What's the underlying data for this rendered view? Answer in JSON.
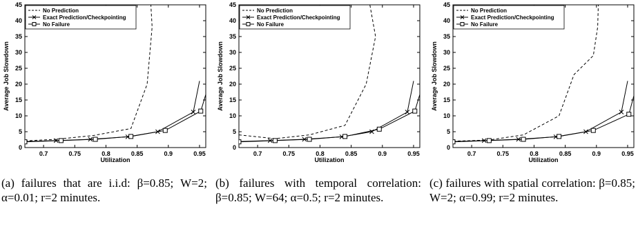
{
  "chart_data": [
    {
      "type": "line",
      "xlabel": "Utilization",
      "ylabel": "Average Job Slowdown",
      "xlim": [
        0.67,
        0.96
      ],
      "ylim": [
        0,
        45
      ],
      "xticks": [
        "0.7",
        "0.75",
        "0.8",
        "0.85",
        "0.9",
        "0.95"
      ],
      "yticks": [
        "0",
        "5",
        "10",
        "15",
        "20",
        "25",
        "30",
        "35",
        "40",
        "45"
      ],
      "legend_position": "top-left",
      "grid": false,
      "series": [
        {
          "name": "No Prediction",
          "style": "dashed",
          "marker": "none",
          "x": [
            0.67,
            0.72,
            0.78,
            0.84,
            0.866,
            0.874,
            0.872
          ],
          "y": [
            2.1,
            2.6,
            3.8,
            6.0,
            20,
            38,
            45
          ]
        },
        {
          "name": "Exact Prediction/Checkpointing",
          "style": "solid",
          "marker": "x",
          "x": [
            0.67,
            0.72,
            0.775,
            0.835,
            0.883,
            0.94,
            0.95
          ],
          "y": [
            1.9,
            2.2,
            2.6,
            3.4,
            5.0,
            11.2,
            21
          ]
        },
        {
          "name": "No Failure",
          "style": "solid",
          "marker": "square",
          "x": [
            0.67,
            0.728,
            0.783,
            0.84,
            0.895,
            0.952,
            0.965
          ],
          "y": [
            1.8,
            2.2,
            2.6,
            3.5,
            5.4,
            11.5,
            20
          ]
        }
      ],
      "caption": "(a) failures that are i.i.d: β=0.85; W=2; α=0.01; r=2 minutes."
    },
    {
      "type": "line",
      "xlabel": "Utilization",
      "ylabel": "Average Job Slowdown",
      "xlim": [
        0.67,
        0.96
      ],
      "ylim": [
        0,
        45
      ],
      "xticks": [
        "0.7",
        "0.75",
        "0.8",
        "0.85",
        "0.9",
        "0.95"
      ],
      "yticks": [
        "0",
        "5",
        "10",
        "15",
        "20",
        "25",
        "30",
        "35",
        "40",
        "45"
      ],
      "legend_position": "top-left",
      "grid": false,
      "series": [
        {
          "name": "No Prediction",
          "style": "dashed",
          "marker": "none",
          "x": [
            0.67,
            0.728,
            0.783,
            0.84,
            0.874,
            0.889,
            0.88
          ],
          "y": [
            4.0,
            2.8,
            4.0,
            7.0,
            20,
            35,
            45
          ]
        },
        {
          "name": "Exact Prediction/Checkpointing",
          "style": "solid",
          "marker": "x",
          "x": [
            0.67,
            0.72,
            0.775,
            0.835,
            0.883,
            0.94,
            0.95
          ],
          "y": [
            1.9,
            2.2,
            2.6,
            3.4,
            5.0,
            11.2,
            21
          ]
        },
        {
          "name": "No Failure",
          "style": "solid",
          "marker": "square",
          "x": [
            0.67,
            0.728,
            0.783,
            0.84,
            0.895,
            0.952,
            0.965
          ],
          "y": [
            1.8,
            2.2,
            2.6,
            3.5,
            5.8,
            11.5,
            20
          ]
        }
      ],
      "caption": "(b) failures with temporal correlation: β=0.85; W=64; α=0.5; r=2 minutes."
    },
    {
      "type": "line",
      "xlabel": "Utilization",
      "ylabel": "Average Job Slowdown",
      "xlim": [
        0.67,
        0.96
      ],
      "ylim": [
        0,
        45
      ],
      "xticks": [
        "0.7",
        "0.75",
        "0.8",
        "0.85",
        "0.9",
        "0.95"
      ],
      "yticks": [
        "0",
        "5",
        "10",
        "15",
        "20",
        "25",
        "30",
        "35",
        "40",
        "45"
      ],
      "legend_position": "top-left",
      "grid": false,
      "series": [
        {
          "name": "No Prediction",
          "style": "dashed",
          "marker": "none",
          "x": [
            0.67,
            0.728,
            0.783,
            0.84,
            0.864,
            0.895,
            0.902,
            0.903
          ],
          "y": [
            2.0,
            2.4,
            4.0,
            10.0,
            23.0,
            29.0,
            38.0,
            45
          ]
        },
        {
          "name": "Exact Prediction/Checkpointing",
          "style": "solid",
          "marker": "x",
          "x": [
            0.67,
            0.72,
            0.775,
            0.835,
            0.883,
            0.94,
            0.95
          ],
          "y": [
            1.9,
            2.2,
            2.6,
            3.4,
            5.0,
            11.2,
            21
          ]
        },
        {
          "name": "No Failure",
          "style": "solid",
          "marker": "square",
          "x": [
            0.67,
            0.728,
            0.783,
            0.84,
            0.895,
            0.952,
            0.965
          ],
          "y": [
            1.8,
            2.2,
            2.6,
            3.5,
            5.4,
            10.5,
            20
          ]
        }
      ],
      "caption": "(c) failures with spatial correlation: β=0.85; W=2; α=0.99; r=2 minutes."
    }
  ]
}
